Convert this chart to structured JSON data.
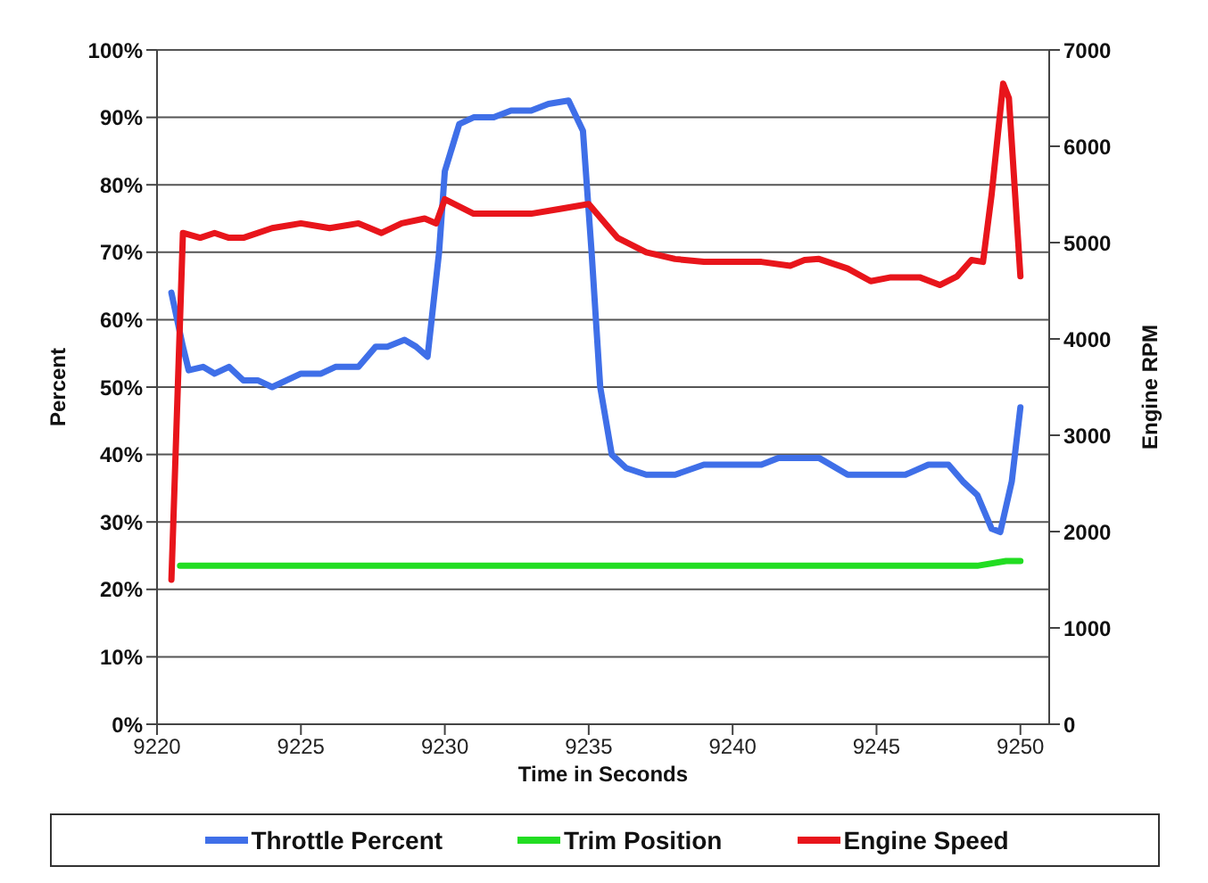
{
  "chart_data": {
    "type": "line",
    "xlabel": "Time in Seconds",
    "ylabel": "Percent",
    "y2label": "Engine RPM",
    "xlim": [
      9220,
      9251
    ],
    "xticks": [
      9220,
      9225,
      9230,
      9235,
      9240,
      9245,
      9250
    ],
    "ylim": [
      0,
      100
    ],
    "yticks": [
      {
        "value": 0,
        "label": "0%"
      },
      {
        "value": 10,
        "label": "10%"
      },
      {
        "value": 20,
        "label": "20%"
      },
      {
        "value": 30,
        "label": "30%"
      },
      {
        "value": 40,
        "label": "40%"
      },
      {
        "value": 50,
        "label": "50%"
      },
      {
        "value": 60,
        "label": "60%"
      },
      {
        "value": 70,
        "label": "70%"
      },
      {
        "value": 80,
        "label": "80%"
      },
      {
        "value": 90,
        "label": "90%"
      },
      {
        "value": 100,
        "label": "100%"
      }
    ],
    "y2lim": [
      0,
      7000
    ],
    "y2ticks": [
      0,
      1000,
      2000,
      3000,
      4000,
      5000,
      6000,
      7000
    ],
    "grid": "y",
    "legend": "bottom",
    "marker": "none",
    "line_style": "solid",
    "series": [
      {
        "name": "Throttle Percent",
        "color": "#3f6fe8",
        "x": [
          9220.5,
          9220.9,
          9221.1,
          9221.6,
          9222,
          9222.5,
          9223,
          9223.5,
          9224,
          9225,
          9225.7,
          9226.2,
          9227,
          9227.6,
          9228,
          9228.6,
          9229,
          9229.4,
          9229.8,
          9230,
          9230.5,
          9231,
          9231.7,
          9232.3,
          9233,
          9233.6,
          9234.3,
          9234.8,
          9235.1,
          9235.4,
          9235.8,
          9236.3,
          9237,
          9238,
          9239,
          9240,
          9241,
          9241.6,
          9243,
          9244,
          9245,
          9246,
          9246.8,
          9247.5,
          9248,
          9248.5,
          9249,
          9249.3,
          9249.7,
          9250
        ],
        "values": [
          64,
          56,
          52.5,
          53,
          52,
          53,
          51,
          51,
          50,
          52,
          52,
          53,
          53,
          56,
          56,
          57,
          56,
          54.5,
          70,
          82,
          89,
          90,
          90,
          91,
          91,
          92,
          92.5,
          88,
          70,
          50,
          40,
          38,
          37,
          37,
          38.5,
          38.5,
          38.5,
          39.5,
          39.5,
          37,
          37,
          37,
          38.5,
          38.5,
          36,
          34,
          29,
          28.5,
          36,
          47
        ]
      },
      {
        "name": "Trim Position",
        "color": "#22dd22",
        "x": [
          9220.8,
          9248.5,
          9249.5,
          9250
        ],
        "values": [
          23.5,
          23.5,
          24.2,
          24.2
        ]
      },
      {
        "name": "Engine Speed",
        "color": "#e8151b",
        "axis": "y2",
        "x": [
          9220.5,
          9220.9,
          9221.5,
          9222,
          9222.5,
          9223,
          9224,
          9225,
          9226,
          9227,
          9227.8,
          9228.5,
          9229.3,
          9229.7,
          9230,
          9231,
          9232,
          9233,
          9234,
          9235,
          9236,
          9237,
          9238,
          9239,
          9240,
          9241,
          9242,
          9242.5,
          9243,
          9244,
          9244.8,
          9245.5,
          9246.5,
          9247.2,
          9247.8,
          9248.3,
          9248.7,
          9249,
          9249.4,
          9249.6,
          9250
        ],
        "values": [
          1500,
          5100,
          5050,
          5100,
          5050,
          5050,
          5150,
          5200,
          5150,
          5200,
          5100,
          5200,
          5250,
          5200,
          5450,
          5300,
          5300,
          5300,
          5350,
          5400,
          5050,
          4900,
          4830,
          4800,
          4800,
          4800,
          4760,
          4820,
          4830,
          4730,
          4600,
          4640,
          4640,
          4560,
          4650,
          4820,
          4800,
          5500,
          6650,
          6500,
          4650
        ]
      }
    ]
  }
}
